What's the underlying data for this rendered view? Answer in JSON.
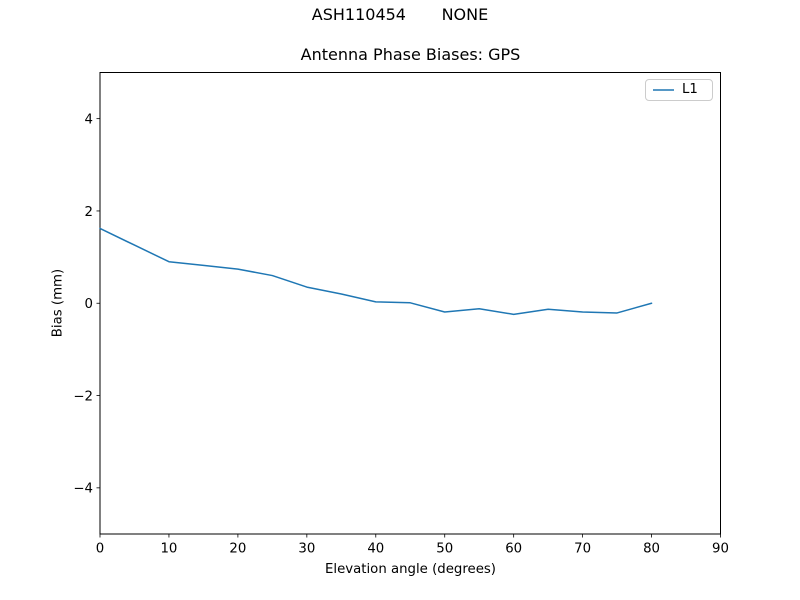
{
  "chart_data": {
    "type": "line",
    "suptitle": "ASH110454       NONE",
    "title": "Antenna Phase Biases: GPS",
    "xlabel": "Elevation angle (degrees)",
    "ylabel": "Bias (mm)",
    "xlim": [
      0,
      90
    ],
    "ylim": [
      -5,
      5
    ],
    "xticks": [
      0,
      10,
      20,
      30,
      40,
      50,
      60,
      70,
      80,
      90
    ],
    "yticks": [
      -4,
      -2,
      0,
      2,
      4
    ],
    "grid": false,
    "legend": {
      "position": "upper right",
      "entries": [
        {
          "label": "L1",
          "color": "#1f77b4"
        }
      ]
    },
    "series": [
      {
        "name": "L1",
        "color": "#1f77b4",
        "x": [
          0,
          5,
          10,
          15,
          20,
          25,
          30,
          35,
          40,
          45,
          50,
          55,
          60,
          65,
          70,
          75,
          80
        ],
        "y": [
          1.62,
          1.26,
          0.9,
          0.82,
          0.74,
          0.6,
          0.35,
          0.2,
          0.03,
          0.01,
          -0.19,
          -0.12,
          -0.24,
          -0.13,
          -0.19,
          -0.21,
          0.0
        ]
      }
    ]
  }
}
